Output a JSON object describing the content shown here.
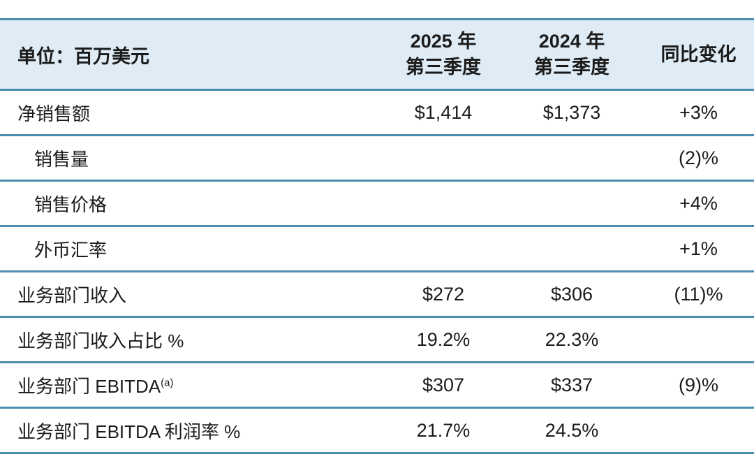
{
  "table": {
    "unit_label": "单位：百万美元",
    "columns": [
      {
        "line1": "2025 年",
        "line2": "第三季度"
      },
      {
        "line1": "2024 年",
        "line2": "第三季度"
      },
      {
        "line1": "同比变化",
        "line2": ""
      }
    ],
    "rows": [
      {
        "label": "净销售额",
        "indent": false,
        "q3_2025": "$1,414",
        "q3_2024": "$1,373",
        "yoy": "+3%"
      },
      {
        "label": "销售量",
        "indent": true,
        "q3_2025": "",
        "q3_2024": "",
        "yoy": "(2)%"
      },
      {
        "label": "销售价格",
        "indent": true,
        "q3_2025": "",
        "q3_2024": "",
        "yoy": "+4%"
      },
      {
        "label": "外币汇率",
        "indent": true,
        "q3_2025": "",
        "q3_2024": "",
        "yoy": "+1%"
      },
      {
        "label": "业务部门收入",
        "indent": false,
        "q3_2025": "$272",
        "q3_2024": "$306",
        "yoy": "(11)%"
      },
      {
        "label": "业务部门收入占比 %",
        "indent": false,
        "q3_2025": "19.2%",
        "q3_2024": "22.3%",
        "yoy": ""
      },
      {
        "label": "业务部门 EBITDA",
        "sup": "(a)",
        "indent": false,
        "q3_2025": "$307",
        "q3_2024": "$337",
        "yoy": "(9)%"
      },
      {
        "label": "业务部门 EBITDA 利润率 %",
        "indent": false,
        "q3_2025": "21.7%",
        "q3_2024": "24.5%",
        "yoy": ""
      }
    ],
    "colors": {
      "divider": "#4b8dad",
      "header_bg": "#dfecf6",
      "text": "#1b1b1b"
    }
  }
}
